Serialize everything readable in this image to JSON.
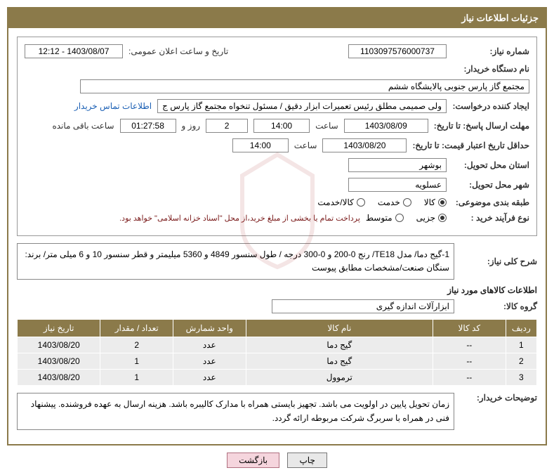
{
  "header": {
    "title": "جزئیات اطلاعات نیاز"
  },
  "fields": {
    "need_number_label": "شماره نیاز:",
    "need_number": "1103097576000737",
    "announce_date_label": "تاریخ و ساعت اعلان عمومی:",
    "announce_date": "1403/08/07 - 12:12",
    "buyer_org_label": "نام دستگاه خریدار:",
    "buyer_org": "مجتمع گاز پارس جنوبی  پالایشگاه ششم",
    "requester_label": "ایجاد کننده درخواست:",
    "requester": "ولی صمیمی مطلق رئیس تعمیرات ابزار دقیق / مسئول تنخواه مجتمع گاز پارس ج",
    "buyer_contact_link": "اطلاعات تماس خریدار",
    "deadline_label": "مهلت ارسال پاسخ: تا تاریخ:",
    "deadline_date": "1403/08/09",
    "time_label": "ساعت",
    "deadline_time": "14:00",
    "days_remaining": "2",
    "days_text": "روز و",
    "time_remaining": "01:27:58",
    "remaining_text": "ساعت باقی مانده",
    "validity_label": "حداقل تاریخ اعتبار قیمت: تا تاریخ:",
    "validity_date": "1403/08/20",
    "validity_time": "14:00",
    "province_label": "استان محل تحویل:",
    "province": "بوشهر",
    "city_label": "شهر محل تحویل:",
    "city": "عسلویه",
    "category_label": "طبقه بندی موضوعی:",
    "process_type_label": "نوع فرآیند خرید :",
    "payment_note": "پرداخت تمام یا بخشی از مبلغ خرید،از محل \"اسناد خزانه اسلامی\" خواهد بود."
  },
  "radios": {
    "category": {
      "opt1": "کالا",
      "opt2": "خدمت",
      "opt3": "کالا/خدمت",
      "checked": 1
    },
    "process": {
      "opt1": "جزیی",
      "opt2": "متوسط",
      "checked": 1
    }
  },
  "need_summary": {
    "label": "شرح کلی نیاز:",
    "text": "1-گیج دما/ مدل TE18/ رنج 0-200 و 0-300 درجه / طول سنسور 4849 و 5360 میلیمتر و قطر سنسور  10 و 6 میلی متر/ برند: سنگان صنعت/مشخصات مطابق پیوست"
  },
  "items_section_title": "اطلاعات کالاهای مورد نیاز",
  "group_label": "گروه کالا:",
  "group_value": "ابزارآلات اندازه گیری",
  "table": {
    "headers": {
      "row": "ردیف",
      "code": "کد کالا",
      "name": "نام کالا",
      "unit": "واحد شمارش",
      "qty": "تعداد / مقدار",
      "date": "تاریخ نیاز"
    },
    "rows": [
      {
        "row": "1",
        "code": "--",
        "name": "گیج دما",
        "unit": "عدد",
        "qty": "2",
        "date": "1403/08/20"
      },
      {
        "row": "2",
        "code": "--",
        "name": "گیج دما",
        "unit": "عدد",
        "qty": "1",
        "date": "1403/08/20"
      },
      {
        "row": "3",
        "code": "--",
        "name": "ترموول",
        "unit": "عدد",
        "qty": "1",
        "date": "1403/08/20"
      }
    ]
  },
  "buyer_notes": {
    "label": "توضیحات خریدار:",
    "text": "زمان تحویل پایین در اولویت می باشد. تجهیز بایستی همراه با مدارک کالیبره باشد. هزینه ارسال به عهده فروشنده. پیشنهاد فنی در همراه با سربرگ شرکت مربوطه ارائه گردد."
  },
  "buttons": {
    "print": "چاپ",
    "back": "بازگشت"
  },
  "colors": {
    "brand": "#8b7a4a",
    "row_bg": "#ececec",
    "link": "#1a5fb4",
    "note": "#7a1a1a",
    "btn_hl_bg": "#f5d5dd"
  }
}
